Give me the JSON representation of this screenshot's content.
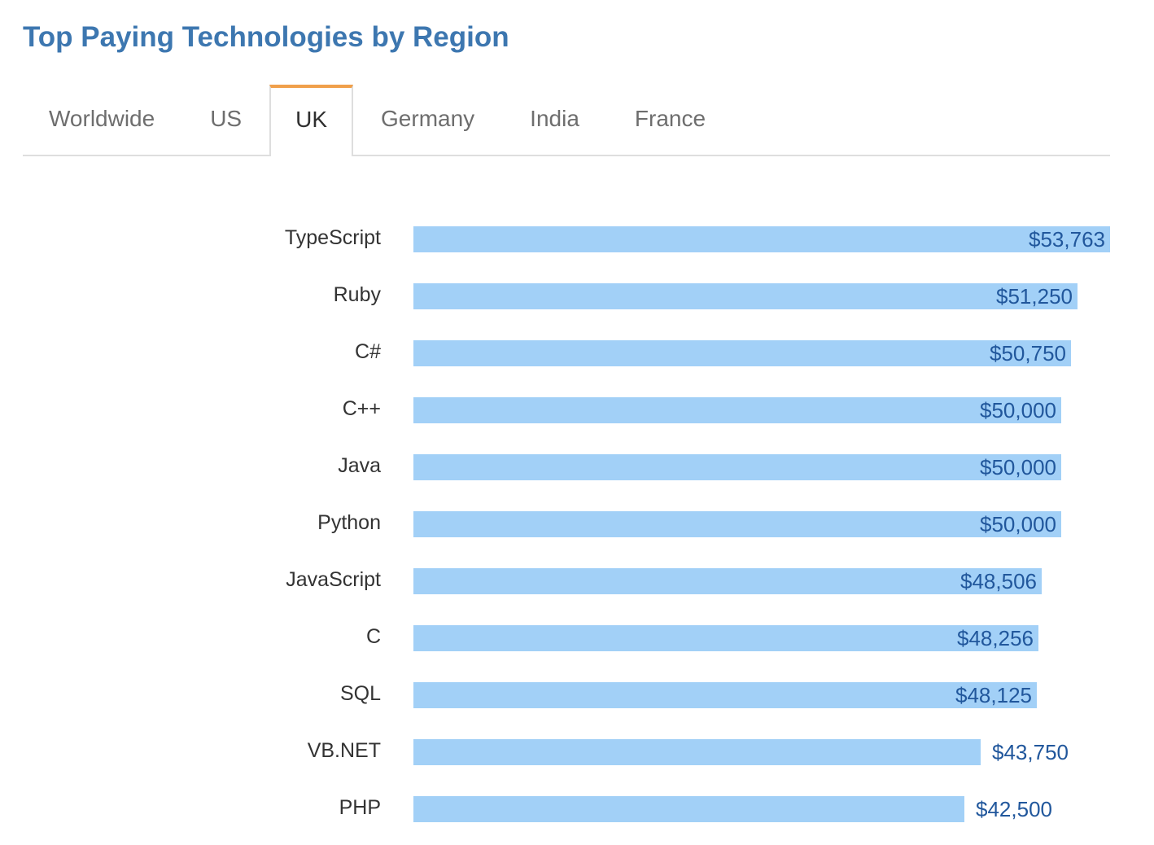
{
  "header": {
    "title": "Top Paying Technologies by Region"
  },
  "tabs": [
    {
      "label": "Worldwide",
      "active": false
    },
    {
      "label": "US",
      "active": false
    },
    {
      "label": "UK",
      "active": true
    },
    {
      "label": "Germany",
      "active": false
    },
    {
      "label": "India",
      "active": false
    },
    {
      "label": "France",
      "active": false
    }
  ],
  "colors": {
    "bar": "#a2d0f7",
    "value_label": "#21579c",
    "title": "#3d77b0",
    "active_tab_accent": "#f0a04b"
  },
  "chart_data": {
    "type": "bar",
    "orientation": "horizontal",
    "title": "Top Paying Technologies by Region",
    "region": "UK",
    "xlabel": "",
    "ylabel": "",
    "xlim": [
      0,
      53763
    ],
    "grid": false,
    "categories": [
      "TypeScript",
      "Ruby",
      "C#",
      "C++",
      "Java",
      "Python",
      "JavaScript",
      "C",
      "SQL",
      "VB.NET",
      "PHP"
    ],
    "values": [
      53763,
      51250,
      50750,
      50000,
      50000,
      50000,
      48506,
      48256,
      48125,
      43750,
      42500
    ],
    "value_labels": [
      "$53,763",
      "$51,250",
      "$50,750",
      "$50,000",
      "$50,000",
      "$50,000",
      "$48,506",
      "$48,256",
      "$48,125",
      "$43,750",
      "$42,500"
    ]
  }
}
